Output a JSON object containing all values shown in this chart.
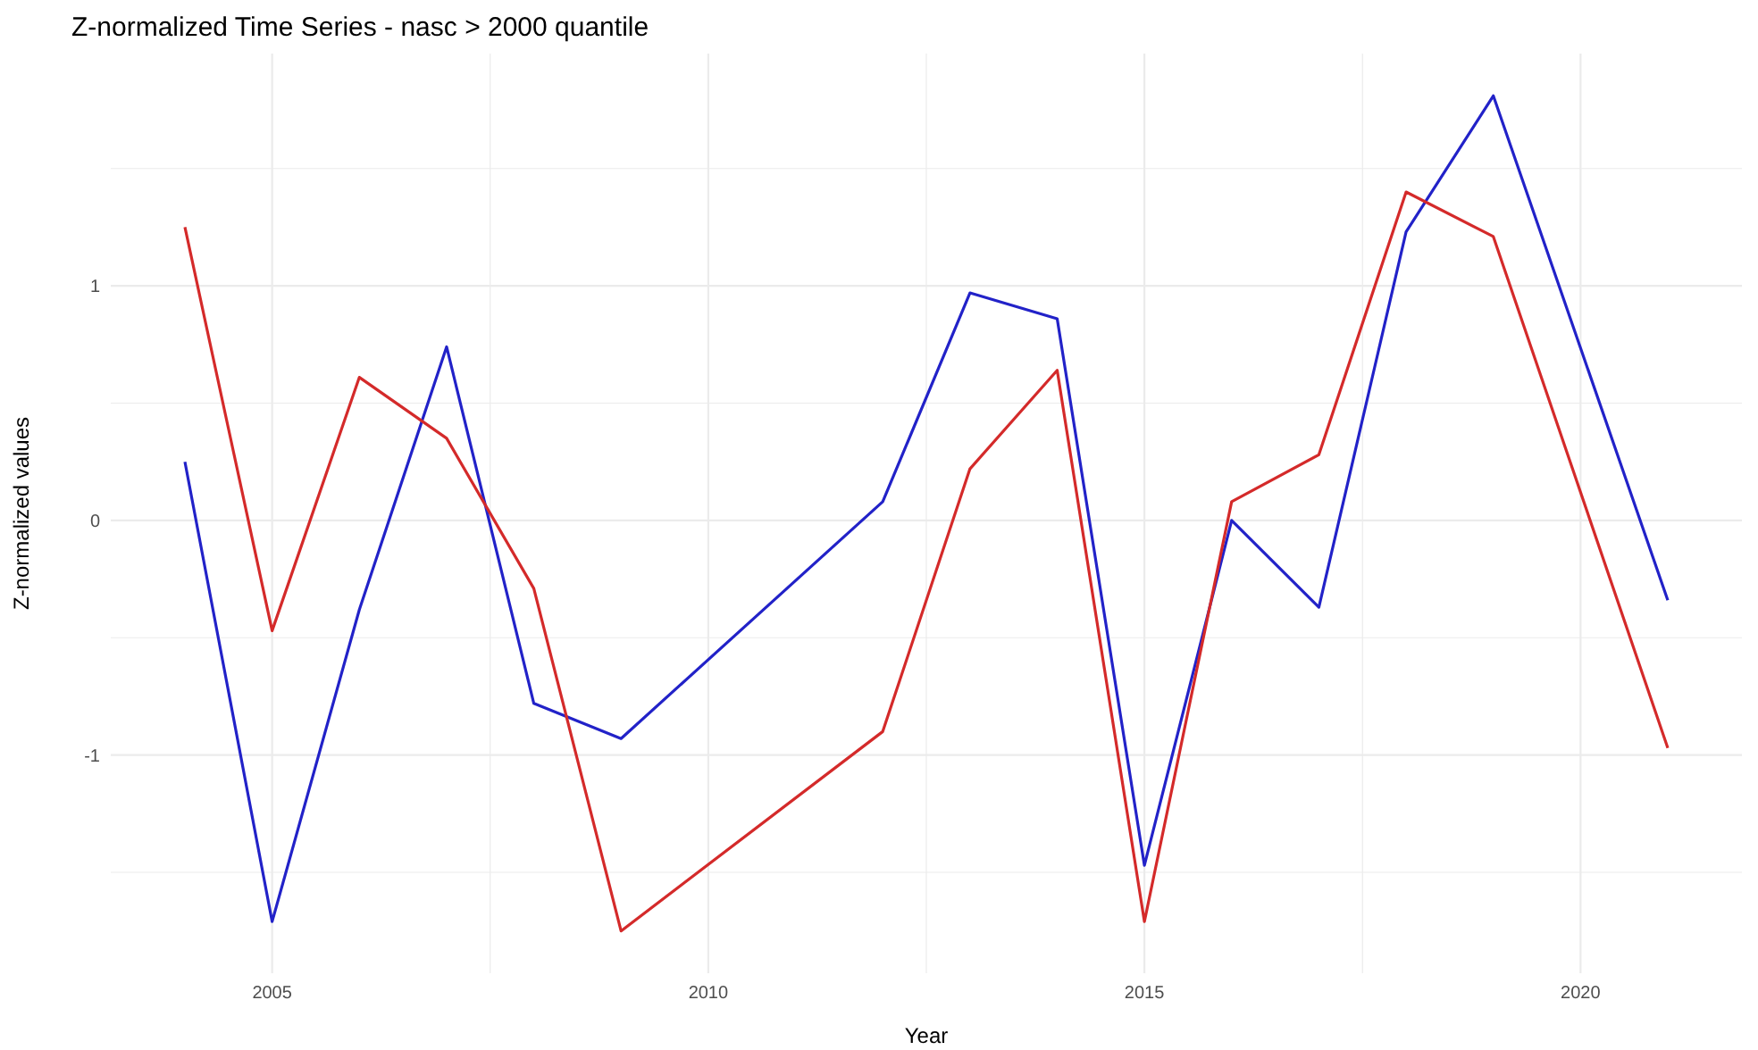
{
  "chart_data": {
    "type": "line",
    "title": "Z-normalized Time Series - nasc > 2000 quantile",
    "xlabel": "Year",
    "ylabel": "Z-normalized values",
    "x": [
      2004,
      2005,
      2006,
      2007,
      2008,
      2009,
      2012,
      2013,
      2014,
      2015,
      2016,
      2017,
      2018,
      2019,
      2021
    ],
    "series": [
      {
        "color": "#2222c8",
        "values": [
          0.25,
          -1.71,
          -0.38,
          0.74,
          -0.78,
          -0.93,
          0.08,
          0.97,
          0.86,
          -1.47,
          0.0,
          -0.37,
          1.23,
          1.81,
          -0.34
        ]
      },
      {
        "color": "#d42a2a",
        "values": [
          1.25,
          -0.47,
          0.61,
          0.35,
          -0.29,
          -1.75,
          -0.9,
          0.22,
          0.64,
          -1.71,
          0.08,
          0.28,
          1.4,
          1.21,
          -0.97
        ]
      }
    ],
    "xlim": [
      2003.15,
      2021.85
    ],
    "ylim": [
      -1.93,
      1.99
    ],
    "xticks": [
      2005,
      {
        "value": 2007.5,
        "label": null
      },
      2010,
      {
        "value": 2012.5,
        "label": null
      },
      2015,
      {
        "value": 2017.5,
        "label": null
      },
      2020
    ],
    "yticks": [
      {
        "value": -1.5,
        "label": null
      },
      -1,
      {
        "value": -0.5,
        "label": null
      },
      0,
      {
        "value": 0.5,
        "label": null
      },
      1,
      {
        "value": 1.5,
        "label": null
      }
    ],
    "grid": true,
    "marker": "none",
    "line_style": "solid"
  }
}
